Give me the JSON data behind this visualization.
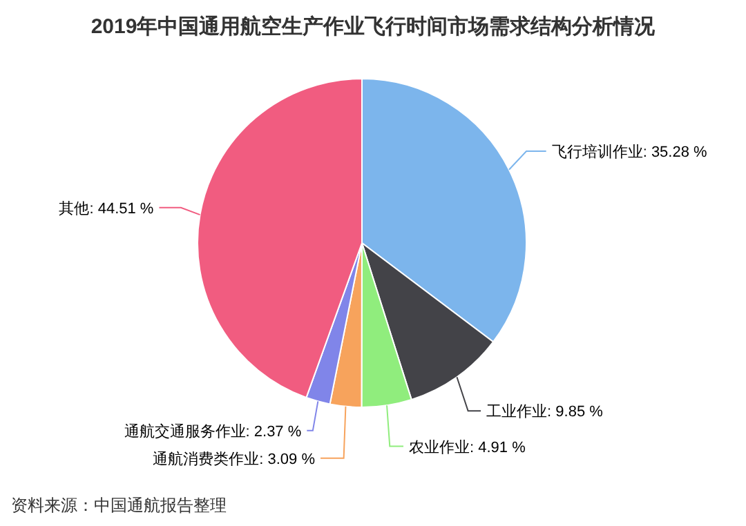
{
  "chart_data": {
    "type": "pie",
    "title": "2019年中国通用航空生产作业飞行时间市场需求结构分析情况",
    "categories": [
      "飞行培训作业",
      "工业作业",
      "农业作业",
      "通航消费类作业",
      "通航交通服务作业",
      "其他"
    ],
    "values": [
      35.28,
      9.85,
      4.91,
      3.09,
      2.37,
      44.51
    ],
    "colors": [
      "#7cb5ec",
      "#434348",
      "#90ed7d",
      "#f7a35c",
      "#8085e9",
      "#f15c80"
    ],
    "value_labels": [
      "35.28 %",
      "9.85 %",
      "4.91 %",
      "3.09 %",
      "2.37 %",
      "44.51 %"
    ],
    "annotations": [
      "资料来源：中国通航报告整理"
    ]
  }
}
